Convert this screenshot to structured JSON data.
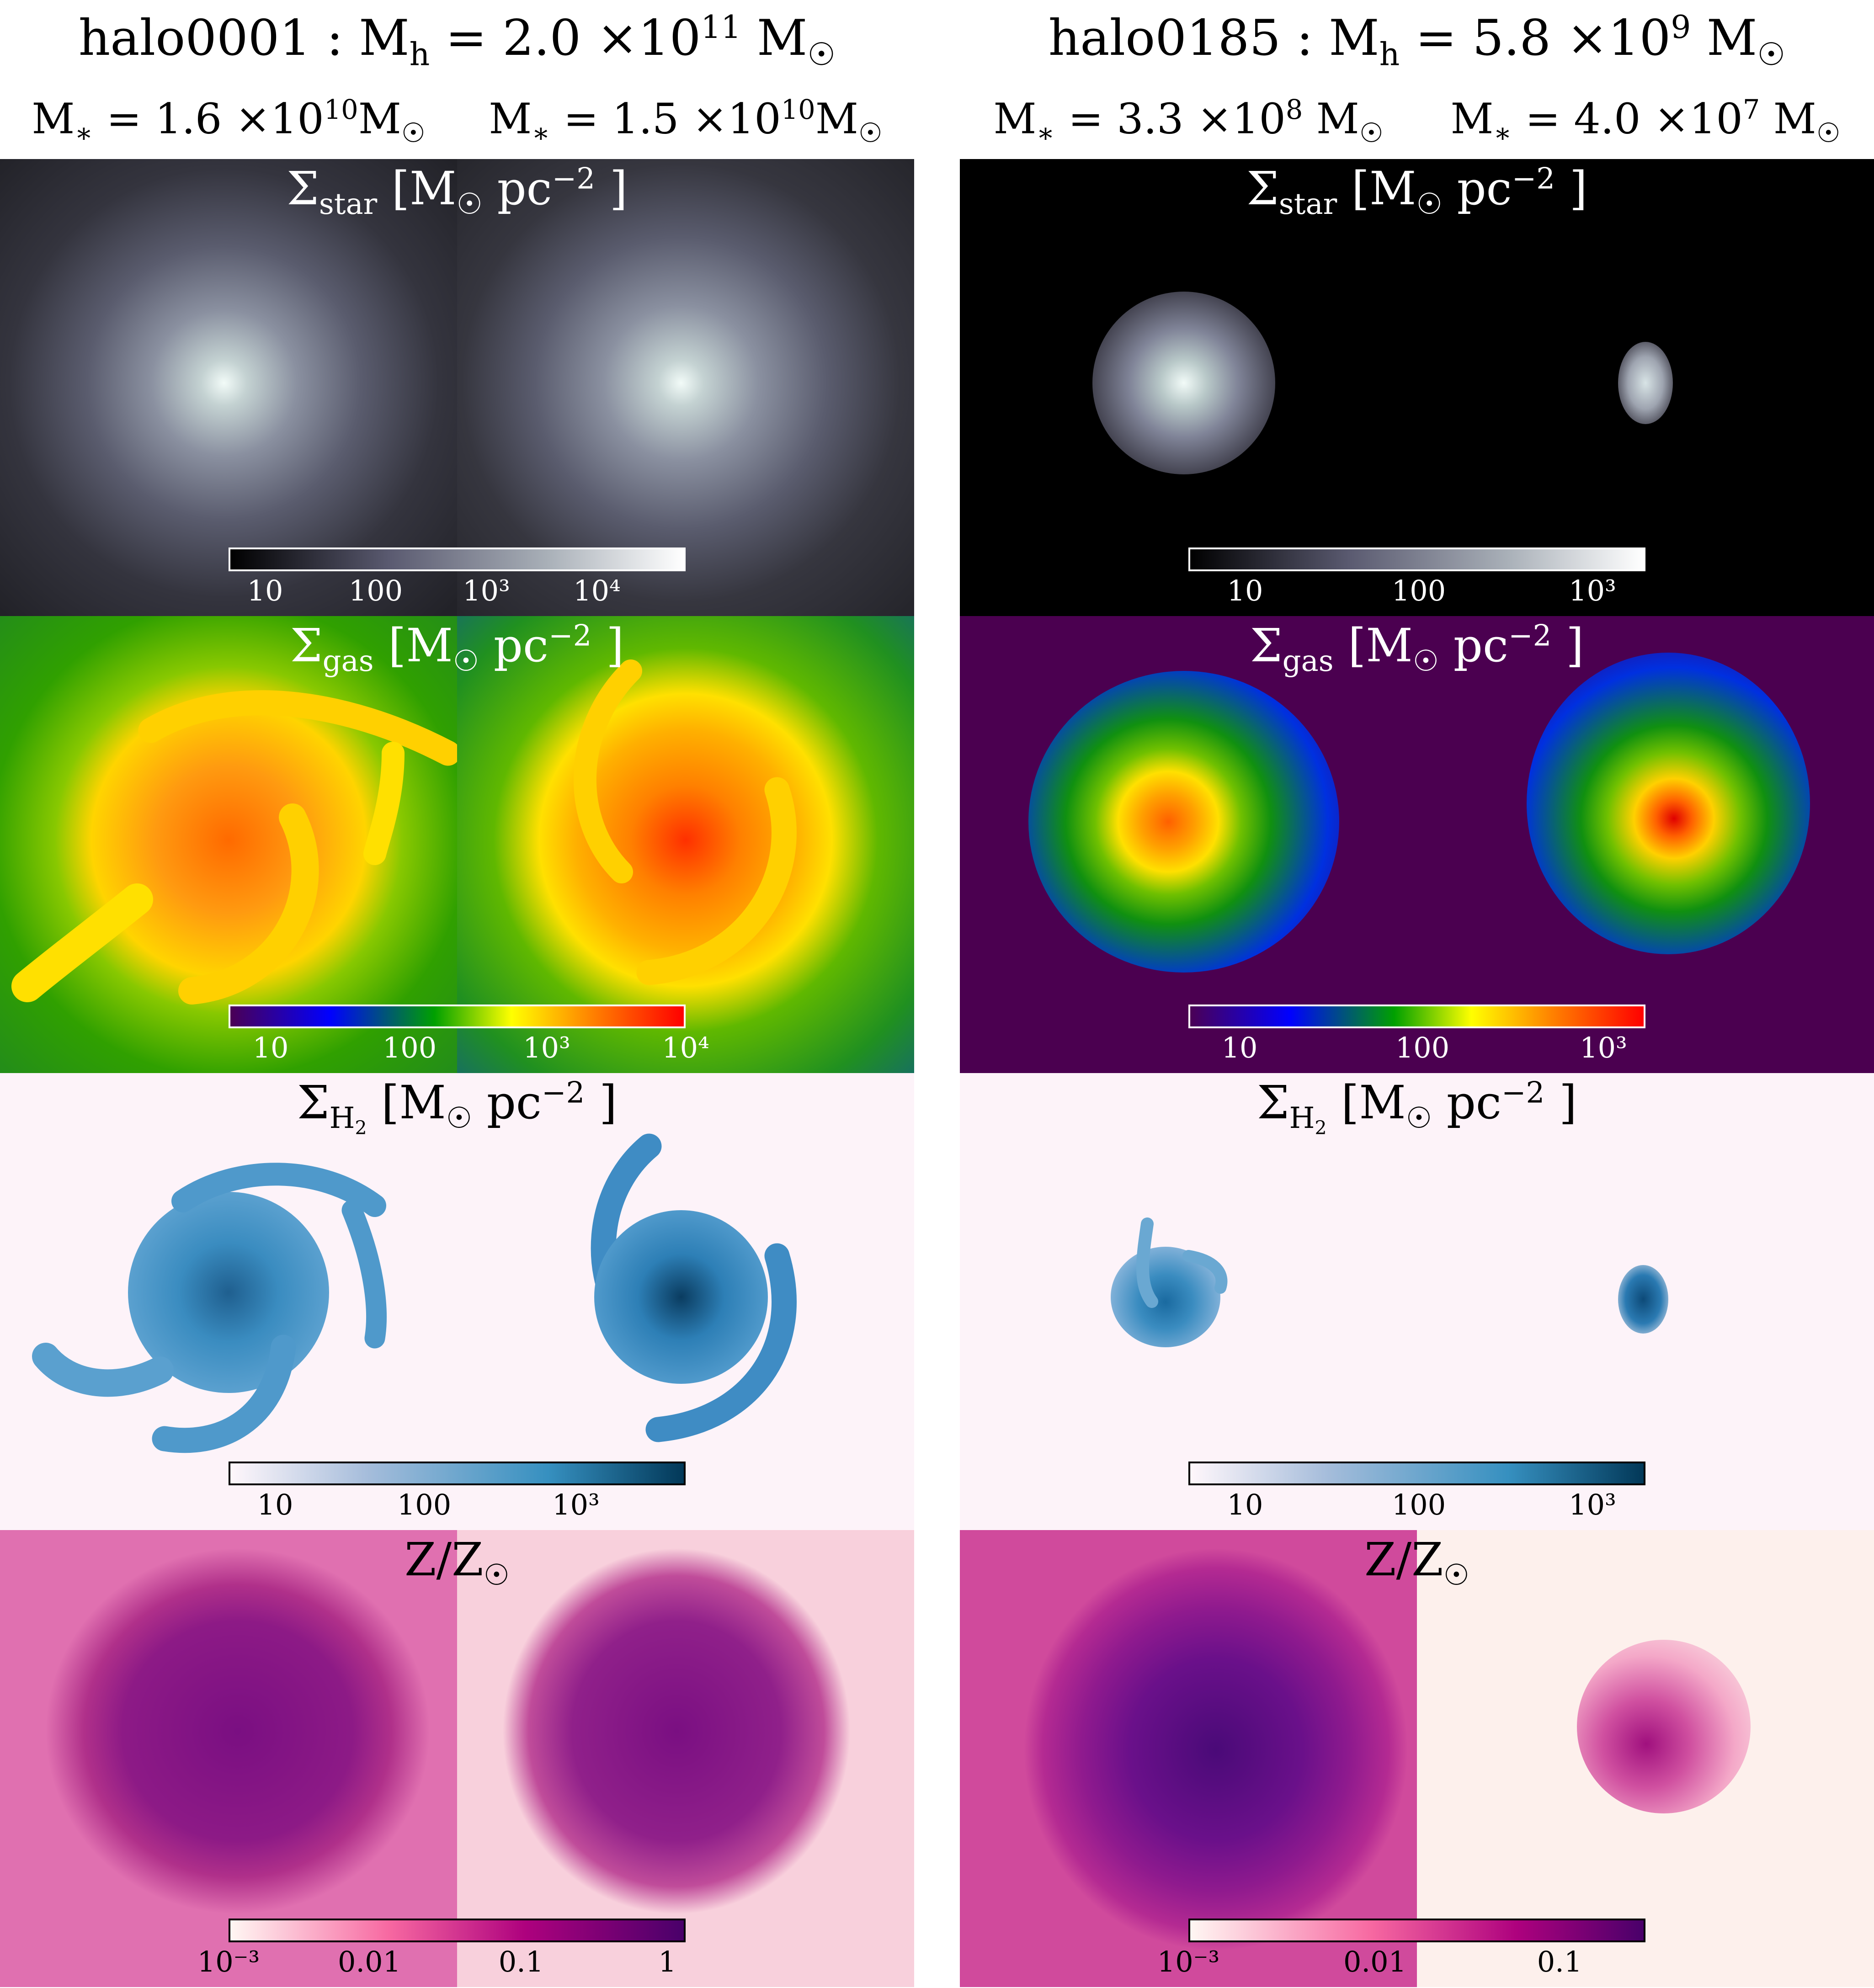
{
  "left": {
    "title": "halo0001 : M",
    "title_sub": "h",
    "title_rest": " = 2.0 ×10",
    "title_exp": "11",
    "title_unit": "  M",
    "sub1_pre": "M",
    "sub1_mid": " = 1.6 ×10",
    "sub1_exp": "10",
    "sub1_unit": "M",
    "sub2_pre": "M",
    "sub2_mid": " = 1.5 ×10",
    "sub2_exp": "10",
    "sub2_unit": "M",
    "star_ticks": [
      "10",
      "100",
      "10³",
      "10⁴"
    ],
    "gas_ticks": [
      "10",
      "100",
      "10³",
      "10⁴"
    ],
    "h2_ticks": [
      "10",
      "100",
      "10³"
    ],
    "z_ticks": [
      "10⁻³",
      "0.01",
      "0.1",
      "1"
    ]
  },
  "right": {
    "title": "halo0185 : M",
    "title_sub": "h",
    "title_rest": " = 5.8 ×10",
    "title_exp": "9",
    "title_unit": "  M",
    "sub1_pre": "M",
    "sub1_mid": " = 3.3 ×10",
    "sub1_exp": "8",
    "sub1_unit": " M",
    "sub2_pre": "M",
    "sub2_mid": " = 4.0 ×10",
    "sub2_exp": "7",
    "sub2_unit": " M",
    "star_ticks": [
      "10",
      "100",
      "10³"
    ],
    "gas_ticks": [
      "10",
      "100",
      "10³"
    ],
    "h2_ticks": [
      "10",
      "100",
      "10³"
    ],
    "z_ticks": [
      "10⁻³",
      "0.01",
      "0.1"
    ]
  },
  "panels": {
    "star_label": "Σ",
    "star_sub": "star",
    "gas_label": "Σ",
    "gas_sub": "gas",
    "h2_label": "Σ",
    "h2_sub": "H",
    "h2_subsub": "2",
    "unit_open": "  [M",
    "unit_pc": " pc",
    "unit_exp": "−2",
    "unit_close": " ]",
    "z_label": "Z/Z",
    "sun": "☉",
    "star_sym": "∗"
  },
  "colormaps": {
    "stars": [
      "#000000",
      "#5a5a70",
      "#a9b0b8",
      "#ffffff"
    ],
    "gas": [
      "#4b0055",
      "#0000ff",
      "#00a000",
      "#ffff00",
      "#ff8000",
      "#ff0000"
    ],
    "h2": [
      "#fff7fb",
      "#a6bddb",
      "#3690c0",
      "#023858"
    ],
    "metals": [
      "#fff7f3",
      "#f768a1",
      "#ae017e",
      "#49006a"
    ]
  }
}
